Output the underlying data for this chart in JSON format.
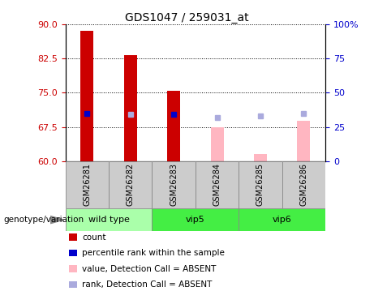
{
  "title": "GDS1047 / 259031_at",
  "samples": [
    "GSM26281",
    "GSM26282",
    "GSM26283",
    "GSM26284",
    "GSM26285",
    "GSM26286"
  ],
  "ylim_left": [
    60,
    90
  ],
  "yticks_left": [
    60,
    67.5,
    75,
    82.5,
    90
  ],
  "ylim_right": [
    0,
    100
  ],
  "yticks_right": [
    0,
    25,
    50,
    75,
    100
  ],
  "bar_value_top": [
    88.5,
    83.2,
    75.5,
    67.5,
    61.5,
    68.8
  ],
  "bar_bottom": 60,
  "red_bars": [
    true,
    true,
    true,
    false,
    false,
    false
  ],
  "pink_bars": [
    false,
    true,
    true,
    true,
    true,
    true
  ],
  "rank_marker_y": [
    70.5,
    70.2,
    70.3,
    69.5,
    70.0,
    70.5
  ],
  "rank_marker_blue": [
    true,
    false,
    true,
    false,
    false,
    false
  ],
  "grid_yticks": [
    67.5,
    75,
    82.5,
    90
  ],
  "group_defs": [
    {
      "name": "wild type",
      "start": 0,
      "end": 2,
      "color": "#AAFFAA"
    },
    {
      "name": "vip5",
      "start": 2,
      "end": 4,
      "color": "#44EE44"
    },
    {
      "name": "vip6",
      "start": 4,
      "end": 6,
      "color": "#44EE44"
    }
  ],
  "legend_items": [
    {
      "color": "#CC0000",
      "label": "count"
    },
    {
      "color": "#0000CC",
      "label": "percentile rank within the sample"
    },
    {
      "color": "#FFB6C1",
      "label": "value, Detection Call = ABSENT"
    },
    {
      "color": "#AAAADD",
      "label": "rank, Detection Call = ABSENT"
    }
  ],
  "genotype_label": "genotype/variation",
  "red_color": "#CC0000",
  "pink_color": "#FFB6C1",
  "blue_color": "#0000CC",
  "lavender_color": "#AAAADD",
  "grey_box_color": "#CCCCCC",
  "sample_box_line_color": "#888888"
}
